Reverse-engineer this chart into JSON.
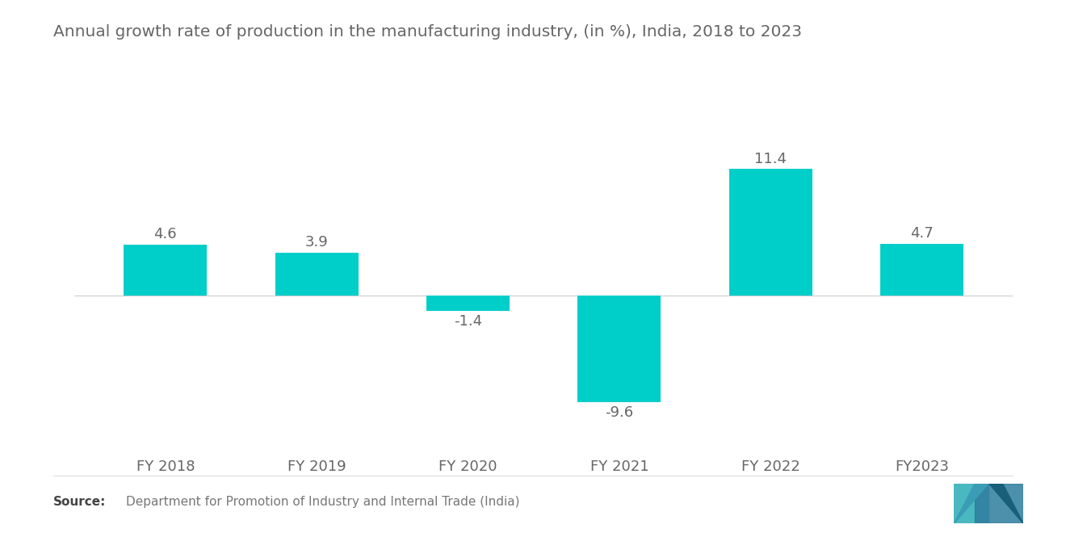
{
  "title": "Annual growth rate of production in the manufacturing industry, (in %), India, 2018 to 2023",
  "categories": [
    "FY 2018",
    "FY 2019",
    "FY 2020",
    "FY 2021",
    "FY 2022",
    "FY2023"
  ],
  "values": [
    4.6,
    3.9,
    -1.4,
    -9.6,
    11.4,
    4.7
  ],
  "bar_color": "#00CEC9",
  "background_color": "#ffffff",
  "title_color": "#666666",
  "label_color": "#666666",
  "source_bold_color": "#444444",
  "source_normal_color": "#777777",
  "title_fontsize": 14.5,
  "label_fontsize": 13,
  "category_fontsize": 13,
  "source_fontsize": 11,
  "ylim": [
    -13.5,
    15.5
  ],
  "bar_width": 0.55
}
